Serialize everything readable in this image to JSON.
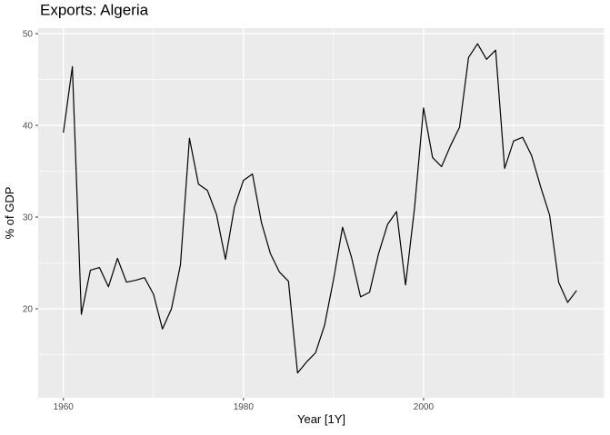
{
  "title": "Exports: Algeria",
  "chart_data": {
    "type": "line",
    "title": "Exports: Algeria",
    "xlabel": "Year [1Y]",
    "ylabel": "% of GDP",
    "x": [
      1960,
      1961,
      1962,
      1963,
      1964,
      1965,
      1966,
      1967,
      1968,
      1969,
      1970,
      1971,
      1972,
      1973,
      1974,
      1975,
      1976,
      1977,
      1978,
      1979,
      1980,
      1981,
      1982,
      1983,
      1984,
      1985,
      1986,
      1987,
      1988,
      1989,
      1990,
      1991,
      1992,
      1993,
      1994,
      1995,
      1996,
      1997,
      1998,
      1999,
      2000,
      2001,
      2002,
      2003,
      2004,
      2005,
      2006,
      2007,
      2008,
      2009,
      2010,
      2011,
      2012,
      2013,
      2014,
      2015,
      2016,
      2017
    ],
    "values": [
      39.2,
      46.4,
      19.4,
      24.2,
      24.5,
      22.4,
      25.5,
      22.9,
      23.1,
      23.4,
      21.6,
      17.8,
      20.0,
      24.8,
      38.6,
      33.6,
      32.9,
      30.3,
      25.4,
      31.1,
      34.0,
      34.7,
      29.4,
      26.0,
      24.0,
      23.0,
      13.0,
      14.2,
      15.2,
      18.2,
      23.2,
      28.9,
      25.6,
      21.3,
      21.8,
      26.0,
      29.2,
      30.6,
      22.6,
      31.0,
      41.9,
      36.5,
      35.5,
      37.8,
      39.8,
      47.4,
      48.9,
      47.2,
      48.2,
      35.3,
      38.3,
      38.7,
      36.7,
      33.3,
      30.2,
      22.9,
      20.7,
      22.0
    ],
    "xlim": [
      1957.2,
      2020.1
    ],
    "ylim": [
      10.3,
      50.6
    ],
    "xticks": [
      1960,
      1980,
      2000
    ],
    "xticks_minor": [
      1970,
      1990,
      2010,
      2020
    ],
    "yticks": [
      20,
      30,
      40,
      50
    ],
    "yticks_minor": [
      15,
      25,
      35,
      45
    ],
    "grid": "major+minor",
    "legend": "none",
    "line_color": "#000000",
    "panel_bg": "#EBEBEB",
    "grid_color": "#FFFFFF",
    "tick_mark_color": "#333333",
    "tick_label_color": "#4D4D4D",
    "axis_title_color": "#000000"
  }
}
